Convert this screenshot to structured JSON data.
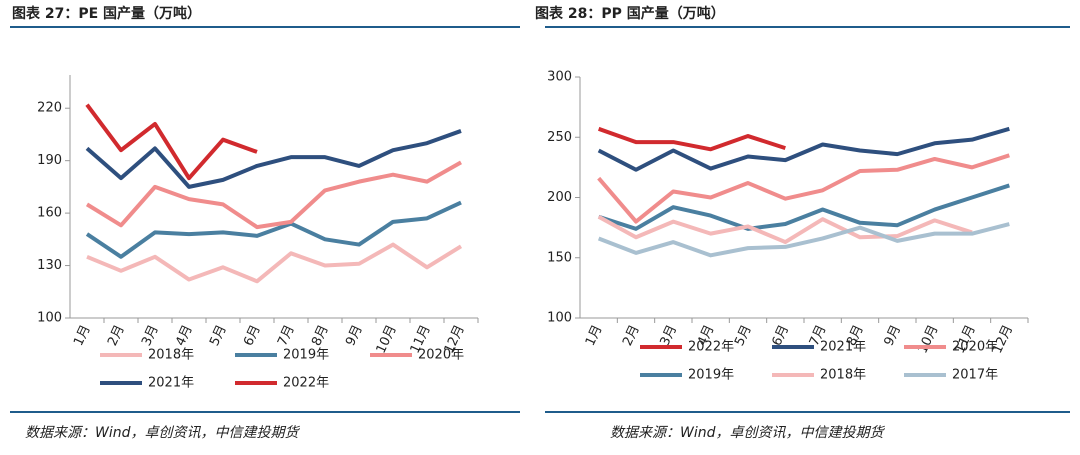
{
  "chart_data": [
    {
      "type": "line",
      "title": "图表 27：PE 国产量（万吨）",
      "source": "数据来源：Wind，卓创资讯，中信建投期货",
      "categories": [
        "1月",
        "2月",
        "3月",
        "4月",
        "5月",
        "6月",
        "7月",
        "8月",
        "9月",
        "10月",
        "11月",
        "12月"
      ],
      "ylim": [
        100,
        239
      ],
      "yticks": [
        100,
        130,
        160,
        190,
        220
      ],
      "series": [
        {
          "name": "2018年",
          "color": "#f4b8b8",
          "values": [
            135,
            127,
            135,
            122,
            129,
            121,
            137,
            130,
            131,
            142,
            129,
            141
          ]
        },
        {
          "name": "2019年",
          "color": "#4a7fa0",
          "values": [
            148,
            135,
            149,
            148,
            149,
            147,
            154,
            145,
            142,
            155,
            157,
            166
          ]
        },
        {
          "name": "2020年",
          "color": "#f08c8c",
          "values": [
            165,
            153,
            175,
            168,
            165,
            152,
            155,
            173,
            178,
            182,
            178,
            189
          ]
        },
        {
          "name": "2021年",
          "color": "#2e4f7e",
          "values": [
            197,
            180,
            197,
            175,
            179,
            187,
            192,
            192,
            187,
            196,
            200,
            207
          ]
        },
        {
          "name": "2022年",
          "color": "#d12a2e",
          "values": [
            222,
            196,
            211,
            180,
            202,
            195,
            null,
            null,
            null,
            null,
            null,
            null
          ]
        }
      ]
    },
    {
      "type": "line",
      "title": "图表 28：PP 国产量（万吨）",
      "source": "数据来源：Wind，卓创资讯，中信建投期货",
      "categories": [
        "1月",
        "2月",
        "3月",
        "4月",
        "5月",
        "6月",
        "7月",
        "8月",
        "9月",
        "10月",
        "11月",
        "12月"
      ],
      "ylim": [
        100,
        300
      ],
      "yticks": [
        100,
        150,
        200,
        250,
        300
      ],
      "series": [
        {
          "name": "2022年",
          "color": "#d12a2e",
          "values": [
            257,
            246,
            246,
            240,
            251,
            241,
            null,
            null,
            null,
            null,
            null,
            null
          ]
        },
        {
          "name": "2021年",
          "color": "#2e4f7e",
          "values": [
            239,
            223,
            239,
            224,
            234,
            231,
            244,
            239,
            236,
            245,
            248,
            257
          ]
        },
        {
          "name": "2020年",
          "color": "#f08c8c",
          "values": [
            216,
            180,
            205,
            200,
            212,
            199,
            206,
            222,
            223,
            232,
            225,
            235
          ]
        },
        {
          "name": "2019年",
          "color": "#4a7fa0",
          "values": [
            184,
            174,
            192,
            185,
            174,
            178,
            190,
            179,
            177,
            190,
            200,
            210
          ]
        },
        {
          "name": "2018年",
          "color": "#f4b8b8",
          "values": [
            184,
            167,
            180,
            170,
            176,
            163,
            182,
            167,
            168,
            181,
            171,
            null
          ]
        },
        {
          "name": "2017年",
          "color": "#a9c0d0",
          "values": [
            166,
            154,
            163,
            152,
            158,
            159,
            166,
            175,
            164,
            170,
            170,
            178
          ]
        }
      ]
    }
  ]
}
